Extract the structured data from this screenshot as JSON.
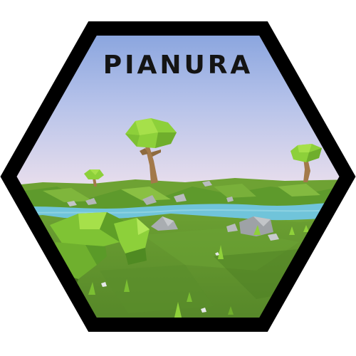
{
  "badge": {
    "title": "PIANURA",
    "biome_icon": "plains-landscape-icon"
  },
  "colors": {
    "frame": "#000000",
    "sky_top": "#7d9fdd",
    "sky_horizon": "#e6dcec",
    "grass": "#5c8f2e",
    "grass_light": "#7bb23a",
    "river": "#6fc3d8",
    "foliage": "#8fd13a",
    "trunk": "#a07a4a",
    "rock": "#9ea2a6",
    "title": "#141414"
  }
}
